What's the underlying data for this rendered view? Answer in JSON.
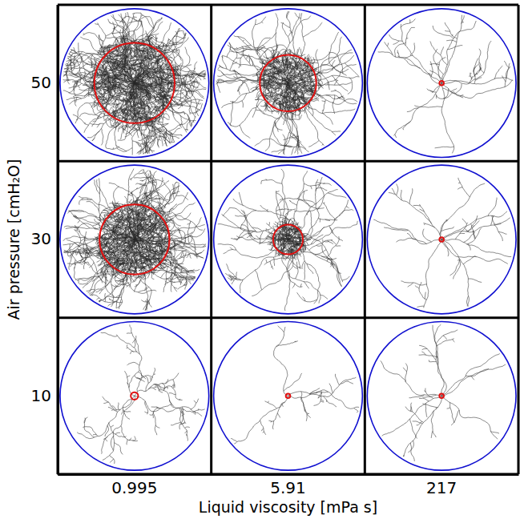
{
  "chart_data": {
    "type": "image_grid",
    "xlabel": "Liquid viscosity [mPa s]",
    "ylabel": "Air pressure [cmH₂O]",
    "x_categories": [
      0.995,
      5.91,
      217
    ],
    "y_categories": [
      50,
      30,
      10
    ],
    "cells": [
      [
        0.54,
        0.38,
        0.03
      ],
      [
        0.47,
        0.2,
        0.03
      ],
      [
        0.05,
        0.03,
        0.03
      ]
    ]
  }
}
